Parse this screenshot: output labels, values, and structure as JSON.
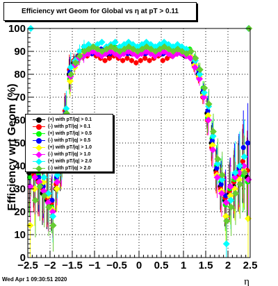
{
  "title": "Efficiency wrt Geom for Global vs  η at pT > 0.11",
  "timestamp": "Wed Apr  1 09:30:51 2020",
  "chart_data": {
    "type": "scatter",
    "xlabel": "η",
    "ylabel": "Efficiency wrt Geom (%)",
    "xlim": [
      -2.5,
      2.5
    ],
    "ylim": [
      0,
      100
    ],
    "x_ticks": [
      "-2.5",
      "-2",
      "-1.5",
      "-1",
      "-0.5",
      "0",
      "0.5",
      "1",
      "1.5",
      "2",
      "2.5"
    ],
    "y_ticks": [
      "0",
      "10",
      "20",
      "30",
      "40",
      "50",
      "60",
      "70",
      "80",
      "90",
      "100"
    ],
    "grid": true,
    "legend_position": "middle-left",
    "series": [
      {
        "name": "(+) with pT/|q| > 0.1",
        "color": "#000000",
        "shape": "circle",
        "x": [
          -2.45,
          -2.35,
          -2.25,
          -2.15,
          -2.05,
          -1.95,
          -1.85,
          -1.75,
          -1.65,
          -1.55,
          -1.45,
          -1.35,
          -1.25,
          -1.15,
          -1.05,
          -0.95,
          -0.85,
          -0.75,
          -0.65,
          -0.55,
          -0.45,
          -0.35,
          -0.25,
          -0.15,
          -0.05,
          0.05,
          0.15,
          0.25,
          0.35,
          0.45,
          0.55,
          0.65,
          0.75,
          0.85,
          0.95,
          1.05,
          1.15,
          1.25,
          1.35,
          1.45,
          1.55,
          1.65,
          1.75,
          1.85,
          1.95,
          2.05,
          2.15,
          2.25,
          2.35,
          2.45
        ],
        "y": [
          37,
          38,
          34,
          28,
          25,
          23,
          30,
          38,
          62,
          80,
          85,
          88,
          90,
          89,
          90,
          90,
          89,
          89,
          88,
          90,
          89,
          90,
          90,
          89,
          89,
          90,
          89,
          90,
          89,
          90,
          89,
          90,
          89,
          90,
          90,
          88,
          89,
          85,
          80,
          72,
          63,
          50,
          38,
          31,
          25,
          28,
          31,
          35,
          40,
          35
        ]
      },
      {
        "name": "(-) with pT/|q| > 0.1",
        "color": "#ff0000",
        "shape": "circle",
        "x": [
          -2.45,
          -2.35,
          -2.25,
          -2.15,
          -2.05,
          -1.95,
          -1.85,
          -1.75,
          -1.65,
          -1.55,
          -1.45,
          -1.35,
          -1.25,
          -1.15,
          -1.05,
          -0.95,
          -0.85,
          -0.75,
          -0.65,
          -0.55,
          -0.45,
          -0.35,
          -0.25,
          -0.15,
          -0.05,
          0.05,
          0.15,
          0.25,
          0.35,
          0.45,
          0.55,
          0.65,
          0.75,
          0.85,
          0.95,
          1.05,
          1.15,
          1.25,
          1.35,
          1.45,
          1.55,
          1.65,
          1.75,
          1.85,
          1.95,
          2.05,
          2.15,
          2.25,
          2.35,
          2.45
        ],
        "y": [
          40,
          36,
          33,
          30,
          26,
          24,
          32,
          40,
          64,
          82,
          86,
          88,
          89,
          88,
          89,
          88,
          87,
          86,
          87,
          88,
          87,
          86,
          87,
          86,
          85,
          86,
          87,
          86,
          87,
          88,
          86,
          87,
          88,
          89,
          90,
          89,
          88,
          84,
          79,
          70,
          60,
          48,
          37,
          30,
          26,
          29,
          33,
          36,
          42,
          38
        ]
      },
      {
        "name": "(+) with pT/|q| > 0.5",
        "color": "#00ff00",
        "shape": "circle",
        "x": [
          -2.45,
          -2.35,
          -2.25,
          -2.15,
          -2.05,
          -1.95,
          -1.85,
          -1.75,
          -1.65,
          -1.55,
          -1.45,
          -1.35,
          -1.25,
          -1.15,
          -1.05,
          -0.95,
          -0.85,
          -0.75,
          -0.65,
          -0.55,
          -0.45,
          -0.35,
          -0.25,
          -0.15,
          -0.05,
          0.05,
          0.15,
          0.25,
          0.35,
          0.45,
          0.55,
          0.65,
          0.75,
          0.85,
          0.95,
          1.05,
          1.15,
          1.25,
          1.35,
          1.45,
          1.55,
          1.65,
          1.75,
          1.85,
          1.95,
          2.05,
          2.15,
          2.25,
          2.35,
          2.45
        ],
        "y": [
          35,
          40,
          36,
          32,
          28,
          22,
          34,
          42,
          60,
          78,
          84,
          87,
          90,
          91,
          90,
          91,
          90,
          91,
          90,
          92,
          91,
          90,
          91,
          92,
          90,
          91,
          92,
          91,
          90,
          91,
          92,
          91,
          90,
          91,
          91,
          90,
          91,
          86,
          82,
          74,
          61,
          52,
          40,
          33,
          23,
          30,
          34,
          38,
          36,
          33
        ]
      },
      {
        "name": "(-) with pT/|q| > 0.5",
        "color": "#0000ff",
        "shape": "circle",
        "x": [
          -2.45,
          -2.35,
          -2.25,
          -2.15,
          -2.05,
          -1.95,
          -1.85,
          -1.75,
          -1.65,
          -1.55,
          -1.45,
          -1.35,
          -1.25,
          -1.15,
          -1.05,
          -0.95,
          -0.85,
          -0.75,
          -0.65,
          -0.55,
          -0.45,
          -0.35,
          -0.25,
          -0.15,
          -0.05,
          0.05,
          0.15,
          0.25,
          0.35,
          0.45,
          0.55,
          0.65,
          0.75,
          0.85,
          0.95,
          1.05,
          1.15,
          1.25,
          1.35,
          1.45,
          1.55,
          1.65,
          1.75,
          1.85,
          1.95,
          2.05,
          2.15,
          2.25,
          2.35,
          2.45
        ],
        "y": [
          42,
          39,
          35,
          31,
          27,
          25,
          35,
          41,
          63,
          81,
          85,
          88,
          89,
          90,
          89,
          90,
          91,
          90,
          89,
          90,
          91,
          90,
          89,
          90,
          91,
          90,
          89,
          90,
          91,
          90,
          89,
          90,
          91,
          90,
          89,
          90,
          89,
          85,
          81,
          73,
          64,
          51,
          39,
          32,
          27,
          31,
          36,
          39,
          48,
          50
        ]
      },
      {
        "name": "(+) with pT/|q| > 1.0",
        "color": "#ffff00",
        "shape": "diamond",
        "x": [
          -2.45,
          -2.35,
          -2.25,
          -2.15,
          -2.05,
          -1.95,
          -1.85,
          -1.75,
          -1.65,
          -1.55,
          -1.45,
          -1.35,
          -1.25,
          -1.15,
          -1.05,
          -0.95,
          -0.85,
          -0.75,
          -0.65,
          -0.55,
          -0.45,
          -0.35,
          -0.25,
          -0.15,
          -0.05,
          0.05,
          0.15,
          0.25,
          0.35,
          0.45,
          0.55,
          0.65,
          0.75,
          0.85,
          0.95,
          1.05,
          1.15,
          1.25,
          1.35,
          1.45,
          1.55,
          1.65,
          1.75,
          1.85,
          1.95,
          2.05,
          2.15,
          2.25,
          2.35,
          2.45
        ],
        "y": [
          14,
          30,
          38,
          33,
          27,
          21,
          30,
          39,
          58,
          77,
          83,
          87,
          89,
          90,
          91,
          90,
          89,
          90,
          91,
          90,
          89,
          90,
          91,
          90,
          89,
          90,
          91,
          90,
          89,
          90,
          91,
          90,
          89,
          90,
          90,
          89,
          88,
          84,
          79,
          71,
          62,
          49,
          36,
          29,
          18,
          27,
          30,
          34,
          38,
          17
        ]
      },
      {
        "name": "(-) with pT/|q| > 1.0",
        "color": "#ff00ff",
        "shape": "diamond",
        "x": [
          -2.45,
          -2.35,
          -2.25,
          -2.15,
          -2.05,
          -1.95,
          -1.85,
          -1.75,
          -1.65,
          -1.55,
          -1.45,
          -1.35,
          -1.25,
          -1.15,
          -1.05,
          -0.95,
          -0.85,
          -0.75,
          -0.65,
          -0.55,
          -0.45,
          -0.35,
          -0.25,
          -0.15,
          -0.05,
          0.05,
          0.15,
          0.25,
          0.35,
          0.45,
          0.55,
          0.65,
          0.75,
          0.85,
          0.95,
          1.05,
          1.15,
          1.25,
          1.35,
          1.45,
          1.55,
          1.65,
          1.75,
          1.85,
          1.95,
          2.05,
          2.15,
          2.25,
          2.35,
          2.45
        ],
        "y": [
          31,
          35,
          33,
          29,
          24,
          20,
          33,
          40,
          61,
          79,
          84,
          87,
          88,
          89,
          90,
          89,
          88,
          89,
          90,
          89,
          88,
          89,
          90,
          89,
          88,
          89,
          90,
          89,
          88,
          89,
          90,
          89,
          88,
          89,
          89,
          88,
          87,
          83,
          78,
          70,
          60,
          47,
          35,
          28,
          24,
          31,
          35,
          37,
          40,
          34
        ]
      },
      {
        "name": "(+) with pT/|q| > 2.0",
        "color": "#00ffff",
        "shape": "diamond",
        "x": [
          -2.45,
          -2.35,
          -2.25,
          -2.15,
          -2.05,
          -1.95,
          -1.85,
          -1.75,
          -1.65,
          -1.55,
          -1.45,
          -1.35,
          -1.25,
          -1.15,
          -1.05,
          -0.95,
          -0.85,
          -0.75,
          -0.65,
          -0.55,
          -0.45,
          -0.35,
          -0.25,
          -0.15,
          -0.05,
          0.05,
          0.15,
          0.25,
          0.35,
          0.45,
          0.55,
          0.65,
          0.75,
          0.85,
          0.95,
          1.05,
          1.15,
          1.25,
          1.35,
          1.45,
          1.55,
          1.65,
          1.75,
          1.85,
          1.95,
          2.05,
          2.15,
          2.25,
          2.35,
          2.45
        ],
        "y": [
          100,
          45,
          40,
          35,
          28,
          18,
          36,
          43,
          65,
          83,
          86,
          90,
          92,
          93,
          92,
          93,
          94,
          92,
          93,
          94,
          92,
          93,
          94,
          93,
          92,
          93,
          94,
          93,
          92,
          93,
          94,
          93,
          92,
          93,
          92,
          91,
          90,
          86,
          80,
          72,
          66,
          53,
          41,
          34,
          6,
          25,
          37,
          40,
          44,
          100
        ]
      },
      {
        "name": "(-) with pT/|q| > 2.0",
        "color": "#66cc33",
        "shape": "diamond",
        "x": [
          -2.45,
          -2.35,
          -2.25,
          -2.15,
          -2.05,
          -1.95,
          -1.85,
          -1.75,
          -1.65,
          -1.55,
          -1.45,
          -1.35,
          -1.25,
          -1.15,
          -1.05,
          -0.95,
          -0.85,
          -0.75,
          -0.65,
          -0.55,
          -0.45,
          -0.35,
          -0.25,
          -0.15,
          -0.05,
          0.05,
          0.15,
          0.25,
          0.35,
          0.45,
          0.55,
          0.65,
          0.75,
          0.85,
          0.95,
          1.05,
          1.15,
          1.25,
          1.35,
          1.45,
          1.55,
          1.65,
          1.75,
          1.85,
          1.95,
          2.05,
          2.15,
          2.25,
          2.35,
          2.45
        ],
        "y": [
          44,
          25,
          31,
          27,
          22,
          14,
          38,
          44,
          63,
          80,
          85,
          88,
          90,
          91,
          92,
          91,
          90,
          91,
          92,
          91,
          90,
          91,
          92,
          91,
          90,
          91,
          92,
          91,
          90,
          91,
          92,
          91,
          90,
          91,
          90,
          89,
          90,
          87,
          82,
          74,
          67,
          55,
          43,
          36,
          16,
          22,
          28,
          32,
          37,
          100
        ]
      }
    ]
  }
}
